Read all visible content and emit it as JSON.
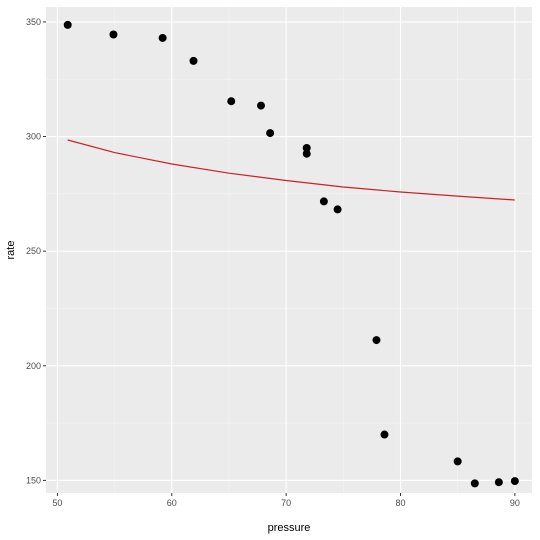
{
  "chart_data": {
    "type": "scatter",
    "xlabel": "pressure",
    "ylabel": "rate",
    "xlim": [
      49.0,
      91.5
    ],
    "ylim": [
      144.5,
      356.5
    ],
    "x_ticks": [
      50,
      60,
      70,
      80,
      90
    ],
    "y_ticks": [
      150,
      200,
      250,
      300,
      350
    ],
    "x_minor": [
      55,
      65,
      75,
      85
    ],
    "y_minor": [
      175,
      225,
      275,
      325
    ],
    "grid": true,
    "legend": "none",
    "series": [
      {
        "kind": "points",
        "color": "#000000",
        "points": [
          {
            "x": 50.9,
            "y": 348.7
          },
          {
            "x": 54.9,
            "y": 344.5
          },
          {
            "x": 59.2,
            "y": 343.0
          },
          {
            "x": 61.9,
            "y": 333.0
          },
          {
            "x": 65.2,
            "y": 315.4
          },
          {
            "x": 67.8,
            "y": 313.5
          },
          {
            "x": 68.6,
            "y": 301.5
          },
          {
            "x": 71.8,
            "y": 295.0
          },
          {
            "x": 71.8,
            "y": 292.5
          },
          {
            "x": 73.3,
            "y": 271.7
          },
          {
            "x": 74.5,
            "y": 268.2
          },
          {
            "x": 77.9,
            "y": 211.2
          },
          {
            "x": 78.6,
            "y": 170.0
          },
          {
            "x": 85.0,
            "y": 158.3
          },
          {
            "x": 86.5,
            "y": 148.7
          },
          {
            "x": 88.6,
            "y": 149.2
          },
          {
            "x": 90.0,
            "y": 149.7
          }
        ]
      },
      {
        "kind": "line",
        "color": "#cc2127",
        "points": [
          {
            "x": 50.9,
            "y": 298.5
          },
          {
            "x": 55.0,
            "y": 293.0
          },
          {
            "x": 60.0,
            "y": 288.0
          },
          {
            "x": 65.0,
            "y": 284.0
          },
          {
            "x": 70.0,
            "y": 280.8
          },
          {
            "x": 75.0,
            "y": 278.0
          },
          {
            "x": 80.0,
            "y": 275.8
          },
          {
            "x": 85.0,
            "y": 274.0
          },
          {
            "x": 90.0,
            "y": 272.3
          }
        ]
      }
    ]
  }
}
